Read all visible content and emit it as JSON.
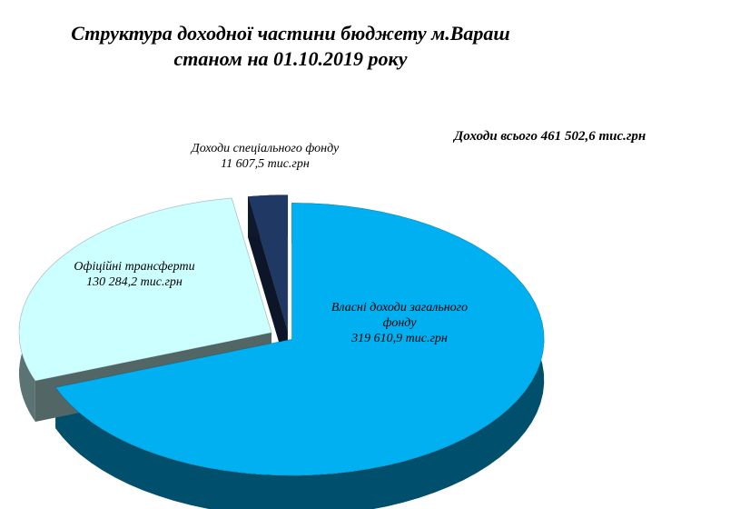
{
  "chart_data": {
    "type": "pie3d",
    "title": [
      "Структура доходної частини бюджету м.Вараш",
      "станом на 01.10.2019 року"
    ],
    "annotation": "Доходи всього 461 502,6  тис.грн",
    "categories": [
      "Власні доходи загального фонду",
      "Офіційні трансферти",
      "Доходи спеціального фонду"
    ],
    "values": [
      319610.9,
      130284.2,
      11607.5
    ],
    "value_labels": [
      "319 610,9 тис.грн",
      "130 284,2 тис.грн",
      "11 607,5 тис.грн"
    ],
    "colors": [
      "#00b0f0",
      "#ccffff",
      "#1f3864"
    ]
  }
}
